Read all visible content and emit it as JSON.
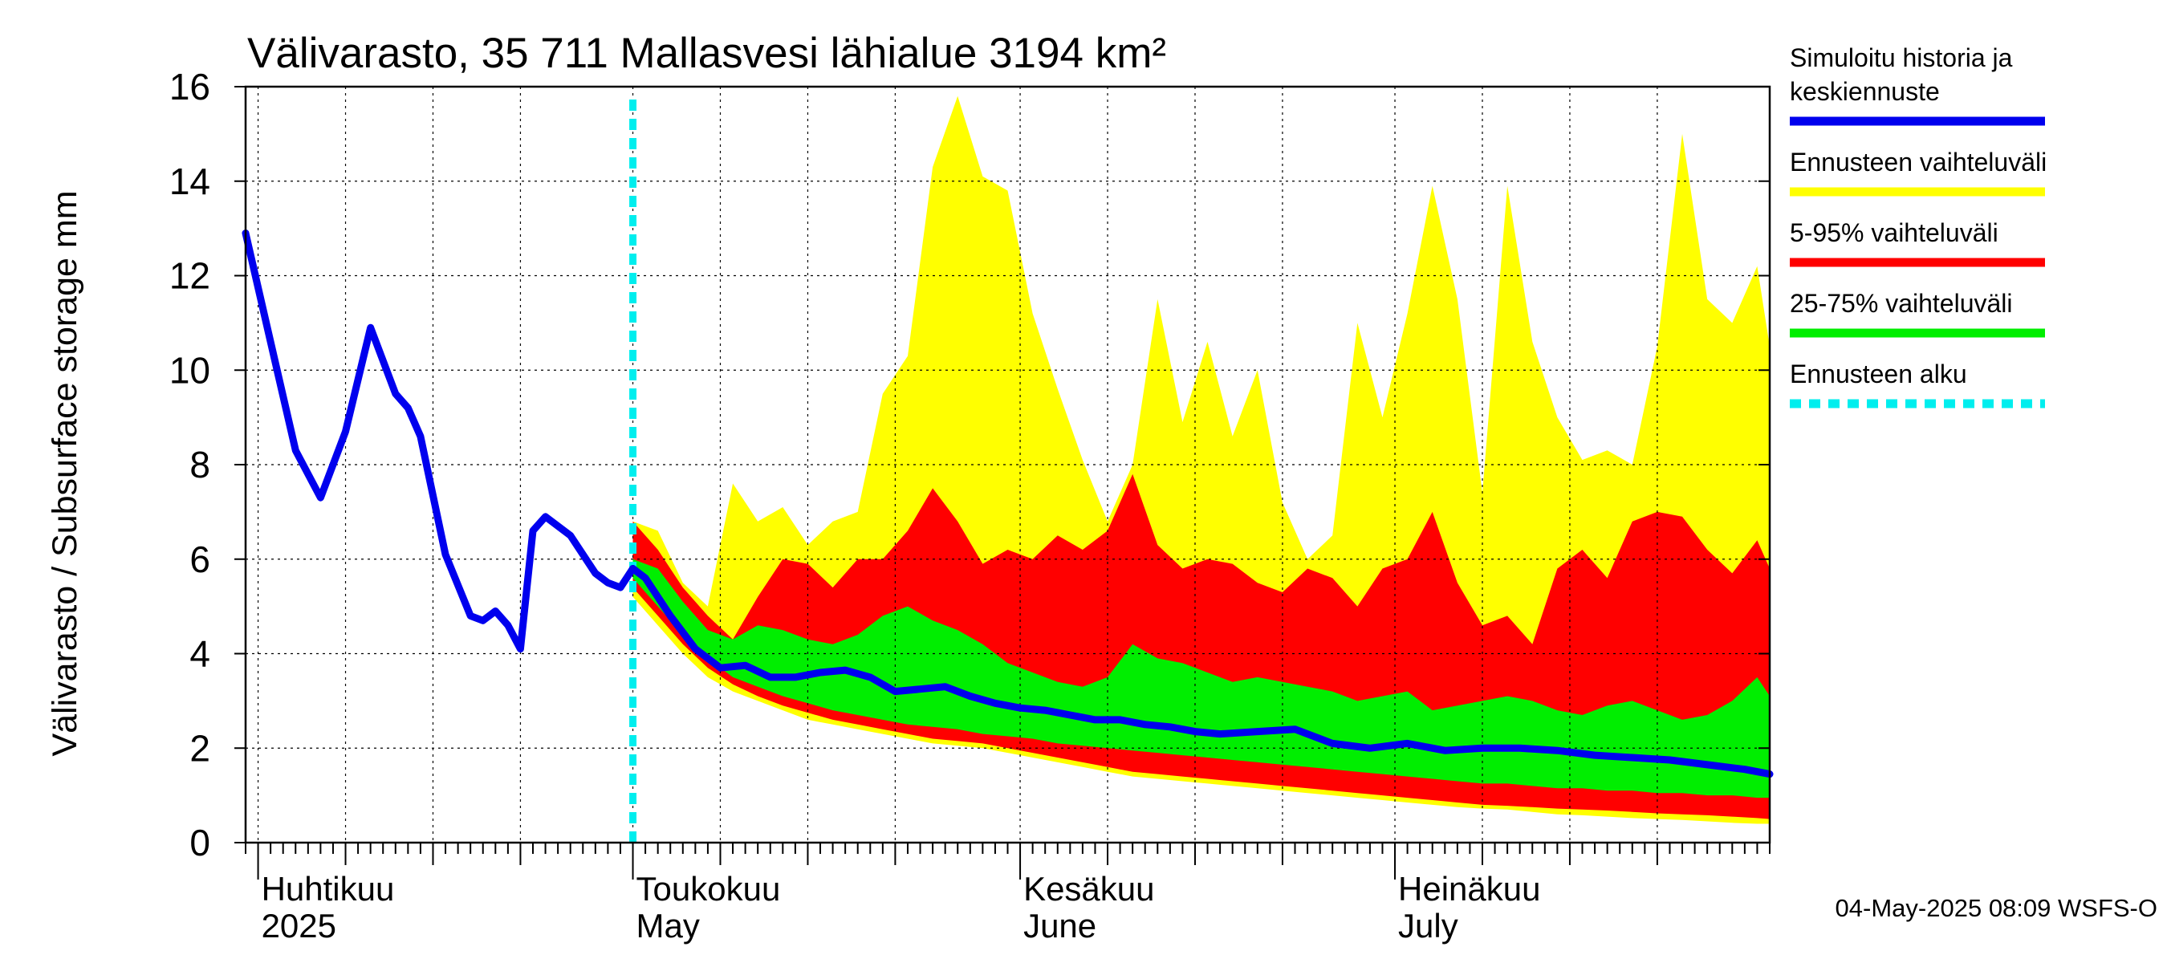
{
  "chart_data": {
    "type": "area",
    "title": "Välivarasto, 35 711 Mallasvesi lähialue 3194 km²",
    "ylabel": "Välivarasto / Subsurface storage  mm",
    "ylim": [
      0,
      16
    ],
    "yticks": [
      0,
      2,
      4,
      6,
      8,
      10,
      12,
      14,
      16
    ],
    "grid": true,
    "legend_position": "right",
    "timestamp": "04-May-2025 08:09 WSFS-O",
    "x_start": "2025-03-31",
    "x_end": "2025-07-31",
    "forecast_start": "2025-05-01",
    "month_labels": [
      {
        "date": "2025-04-01",
        "fi": "Huhtikuu",
        "en": "2025"
      },
      {
        "date": "2025-05-01",
        "fi": "Toukokuu",
        "en": "May"
      },
      {
        "date": "2025-06-01",
        "fi": "Kesäkuu",
        "en": "June"
      },
      {
        "date": "2025-07-01",
        "fi": "Heinäkuu",
        "en": "July"
      }
    ],
    "legend": [
      {
        "key": "sim",
        "label": "Simuloitu historia ja keskiennuste",
        "lines": [
          "Simuloitu historia ja",
          "keskiennuste"
        ],
        "color": "#0000ee",
        "style": "solid"
      },
      {
        "key": "range",
        "label": "Ennusteen vaihteluväli",
        "lines": [
          "Ennusteen vaihteluväli"
        ],
        "color": "#ffff00",
        "style": "solid"
      },
      {
        "key": "p5_95",
        "label": "5-95% vaihteluväli",
        "lines": [
          "5-95% vaihteluväli"
        ],
        "color": "#ff0000",
        "style": "solid"
      },
      {
        "key": "p25_75",
        "label": "25-75% vaihteluväli",
        "lines": [
          "25-75% vaihteluväli"
        ],
        "color": "#00ee00",
        "style": "solid"
      },
      {
        "key": "start",
        "label": "Ennusteen alku",
        "lines": [
          "Ennusteen alku"
        ],
        "color": "#00eeee",
        "style": "dashed"
      }
    ],
    "series": [
      {
        "key": "history",
        "x": [
          "2025-03-31",
          "2025-04-02",
          "2025-04-04",
          "2025-04-06",
          "2025-04-08",
          "2025-04-10",
          "2025-04-12",
          "2025-04-13",
          "2025-04-14",
          "2025-04-16",
          "2025-04-18",
          "2025-04-19",
          "2025-04-20",
          "2025-04-21",
          "2025-04-22",
          "2025-04-23",
          "2025-04-24",
          "2025-04-26",
          "2025-04-28",
          "2025-04-29",
          "2025-04-30",
          "2025-05-01"
        ],
        "y": [
          12.9,
          10.6,
          8.3,
          7.3,
          8.7,
          10.9,
          9.5,
          9.2,
          8.6,
          6.1,
          4.8,
          4.7,
          4.9,
          4.6,
          4.1,
          6.6,
          6.9,
          6.5,
          5.7,
          5.5,
          5.4,
          5.8
        ]
      },
      {
        "key": "mean_forecast",
        "x": [
          "2025-05-01",
          "2025-05-02",
          "2025-05-04",
          "2025-05-06",
          "2025-05-08",
          "2025-05-10",
          "2025-05-12",
          "2025-05-14",
          "2025-05-16",
          "2025-05-18",
          "2025-05-20",
          "2025-05-22",
          "2025-05-24",
          "2025-05-26",
          "2025-05-28",
          "2025-05-30",
          "2025-06-01",
          "2025-06-03",
          "2025-06-05",
          "2025-06-07",
          "2025-06-09",
          "2025-06-11",
          "2025-06-13",
          "2025-06-15",
          "2025-06-17",
          "2025-06-20",
          "2025-06-23",
          "2025-06-26",
          "2025-06-29",
          "2025-07-02",
          "2025-07-05",
          "2025-07-08",
          "2025-07-11",
          "2025-07-14",
          "2025-07-17",
          "2025-07-20",
          "2025-07-23",
          "2025-07-26",
          "2025-07-29",
          "2025-07-31"
        ],
        "y": [
          5.8,
          5.6,
          4.8,
          4.1,
          3.7,
          3.75,
          3.5,
          3.5,
          3.6,
          3.65,
          3.5,
          3.2,
          3.25,
          3.3,
          3.1,
          2.95,
          2.85,
          2.8,
          2.7,
          2.6,
          2.6,
          2.5,
          2.45,
          2.35,
          2.3,
          2.35,
          2.4,
          2.1,
          2.0,
          2.1,
          1.95,
          2.0,
          2.0,
          1.95,
          1.85,
          1.8,
          1.75,
          1.65,
          1.55,
          1.45
        ]
      }
    ],
    "bands": {
      "x": [
        "2025-05-01",
        "2025-05-03",
        "2025-05-05",
        "2025-05-07",
        "2025-05-09",
        "2025-05-11",
        "2025-05-13",
        "2025-05-15",
        "2025-05-17",
        "2025-05-19",
        "2025-05-21",
        "2025-05-23",
        "2025-05-25",
        "2025-05-27",
        "2025-05-29",
        "2025-05-31",
        "2025-06-02",
        "2025-06-04",
        "2025-06-06",
        "2025-06-08",
        "2025-06-10",
        "2025-06-12",
        "2025-06-14",
        "2025-06-16",
        "2025-06-18",
        "2025-06-20",
        "2025-06-22",
        "2025-06-24",
        "2025-06-26",
        "2025-06-28",
        "2025-06-30",
        "2025-07-02",
        "2025-07-04",
        "2025-07-06",
        "2025-07-08",
        "2025-07-10",
        "2025-07-12",
        "2025-07-14",
        "2025-07-16",
        "2025-07-18",
        "2025-07-20",
        "2025-07-22",
        "2025-07-24",
        "2025-07-26",
        "2025-07-28",
        "2025-07-30",
        "2025-07-31"
      ],
      "min": [
        5.2,
        4.6,
        4.0,
        3.5,
        3.2,
        3.0,
        2.8,
        2.6,
        2.5,
        2.4,
        2.3,
        2.2,
        2.1,
        2.05,
        2.0,
        1.9,
        1.8,
        1.7,
        1.6,
        1.5,
        1.4,
        1.35,
        1.3,
        1.25,
        1.2,
        1.15,
        1.1,
        1.05,
        1.0,
        0.95,
        0.9,
        0.85,
        0.8,
        0.75,
        0.72,
        0.7,
        0.65,
        0.6,
        0.58,
        0.55,
        0.52,
        0.5,
        0.48,
        0.45,
        0.42,
        0.4,
        0.4
      ],
      "p5": [
        5.4,
        4.8,
        4.2,
        3.7,
        3.35,
        3.1,
        2.9,
        2.75,
        2.6,
        2.5,
        2.4,
        2.3,
        2.2,
        2.15,
        2.1,
        2.0,
        1.9,
        1.8,
        1.7,
        1.6,
        1.5,
        1.45,
        1.4,
        1.35,
        1.3,
        1.25,
        1.2,
        1.15,
        1.1,
        1.05,
        1.0,
        0.95,
        0.9,
        0.85,
        0.8,
        0.78,
        0.75,
        0.72,
        0.7,
        0.68,
        0.65,
        0.62,
        0.6,
        0.58,
        0.55,
        0.52,
        0.5
      ],
      "p25": [
        5.6,
        5.0,
        4.4,
        3.9,
        3.5,
        3.3,
        3.1,
        2.95,
        2.8,
        2.7,
        2.6,
        2.5,
        2.45,
        2.4,
        2.3,
        2.25,
        2.2,
        2.1,
        2.05,
        2.0,
        1.95,
        1.9,
        1.85,
        1.8,
        1.75,
        1.7,
        1.65,
        1.6,
        1.55,
        1.5,
        1.45,
        1.4,
        1.35,
        1.3,
        1.25,
        1.25,
        1.2,
        1.15,
        1.15,
        1.1,
        1.1,
        1.05,
        1.05,
        1.0,
        1.0,
        0.95,
        0.95
      ],
      "p75": [
        6.0,
        5.8,
        5.1,
        4.5,
        4.3,
        4.6,
        4.5,
        4.3,
        4.2,
        4.4,
        4.8,
        5.0,
        4.7,
        4.5,
        4.2,
        3.8,
        3.6,
        3.4,
        3.3,
        3.5,
        4.2,
        3.9,
        3.8,
        3.6,
        3.4,
        3.5,
        3.4,
        3.3,
        3.2,
        3.0,
        3.1,
        3.2,
        2.8,
        2.9,
        3.0,
        3.1,
        3.0,
        2.8,
        2.7,
        2.9,
        3.0,
        2.8,
        2.6,
        2.7,
        3.0,
        3.5,
        3.1
      ],
      "p95": [
        6.8,
        6.2,
        5.4,
        4.8,
        4.3,
        5.2,
        6.0,
        5.9,
        5.4,
        6.0,
        6.0,
        6.6,
        7.5,
        6.8,
        5.9,
        6.2,
        6.0,
        6.5,
        6.2,
        6.6,
        7.8,
        6.3,
        5.8,
        6.0,
        5.9,
        5.5,
        5.3,
        5.8,
        5.6,
        5.0,
        5.8,
        6.0,
        7.0,
        5.5,
        4.6,
        4.8,
        4.2,
        5.8,
        6.2,
        5.6,
        6.8,
        7.0,
        6.9,
        6.2,
        5.7,
        6.4,
        5.8
      ],
      "max": [
        6.8,
        6.6,
        5.5,
        5.0,
        7.6,
        6.8,
        7.1,
        6.3,
        6.8,
        7.0,
        9.5,
        10.3,
        14.3,
        15.8,
        14.1,
        13.8,
        11.2,
        9.6,
        8.1,
        6.8,
        8.0,
        11.5,
        8.9,
        10.6,
        8.6,
        10.0,
        7.2,
        6.0,
        6.5,
        11.0,
        9.0,
        11.2,
        13.9,
        11.5,
        7.4,
        13.9,
        10.6,
        9.0,
        8.1,
        8.3,
        8.0,
        10.5,
        15.0,
        11.5,
        11.0,
        12.2,
        10.5
      ]
    }
  }
}
